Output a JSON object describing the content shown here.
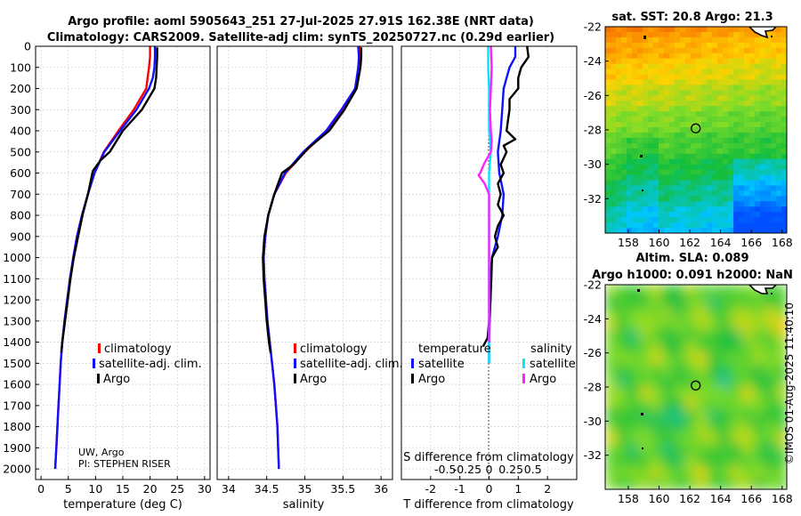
{
  "colors": {
    "climatology": "#ff0000",
    "satellite": "#1010ff",
    "argo": "#000000",
    "temp_sat_diff": "#1010ff",
    "sal_sat_diff": "#00e8ff",
    "sal_argo_diff": "#ff20ff"
  },
  "figure": {
    "title_line1": "Argo profile: aoml 5905643_251 27-Jul-2025 27.91S 162.38E (NRT data)",
    "title_line2": "Climatology: CARS2009. Satellite-adj clim: synTS_20250727.nc (0.29d earlier)",
    "credit_line1": "UW, Argo",
    "credit_line2": "PI: STEPHEN RISER",
    "imos_stamp": "©IMOS 01-Aug-2025 11:40:10"
  },
  "chart_data": [
    {
      "id": "temperature",
      "type": "line",
      "xlabel": "temperature (deg C)",
      "ylabel": "",
      "xlim": [
        -1,
        31
      ],
      "ylim": [
        2050,
        0
      ],
      "xticks": [
        "0",
        "5",
        "10",
        "15",
        "20",
        "25",
        "30"
      ],
      "xtick_values": [
        0,
        5,
        10,
        15,
        20,
        25,
        30
      ],
      "yticks": [
        "0",
        "100",
        "200",
        "300",
        "400",
        "500",
        "600",
        "700",
        "800",
        "900",
        "1000",
        "1100",
        "1200",
        "1300",
        "1400",
        "1500",
        "1600",
        "1700",
        "1800",
        "1900",
        "2000"
      ],
      "ytick_values": [
        0,
        100,
        200,
        300,
        400,
        500,
        600,
        700,
        800,
        900,
        1000,
        1100,
        1200,
        1300,
        1400,
        1500,
        1600,
        1700,
        1800,
        1900,
        2000
      ],
      "legend": [
        "climatology",
        "satellite-adj. clim.",
        "Argo"
      ],
      "series": [
        {
          "name": "climatology",
          "key": "climatology",
          "points": [
            [
              20.0,
              0
            ],
            [
              20.0,
              50
            ],
            [
              19.8,
              100
            ],
            [
              19.3,
              200
            ],
            [
              17.0,
              300
            ],
            [
              14.2,
              400
            ],
            [
              11.5,
              500
            ],
            [
              9.8,
              600
            ],
            [
              8.6,
              700
            ],
            [
              7.5,
              800
            ],
            [
              6.6,
              900
            ],
            [
              5.9,
              1000
            ],
            [
              5.3,
              1100
            ],
            [
              4.8,
              1200
            ],
            [
              4.3,
              1300
            ],
            [
              3.9,
              1400
            ],
            [
              3.6,
              1500
            ],
            [
              3.4,
              1600
            ],
            [
              3.2,
              1700
            ],
            [
              3.0,
              1800
            ],
            [
              2.8,
              1900
            ],
            [
              2.6,
              2000
            ]
          ]
        },
        {
          "name": "satellite-adj. clim.",
          "key": "satellite",
          "points": [
            [
              20.9,
              0
            ],
            [
              20.9,
              50
            ],
            [
              20.8,
              100
            ],
            [
              20.5,
              150
            ],
            [
              19.8,
              200
            ],
            [
              17.5,
              300
            ],
            [
              14.5,
              400
            ],
            [
              11.6,
              500
            ],
            [
              9.8,
              600
            ],
            [
              8.6,
              700
            ],
            [
              7.5,
              800
            ],
            [
              6.6,
              900
            ],
            [
              5.9,
              1000
            ],
            [
              5.3,
              1100
            ],
            [
              4.8,
              1200
            ],
            [
              4.3,
              1300
            ],
            [
              3.9,
              1400
            ],
            [
              3.6,
              1500
            ],
            [
              3.4,
              1600
            ],
            [
              3.2,
              1700
            ],
            [
              3.0,
              1800
            ],
            [
              2.8,
              1900
            ],
            [
              2.6,
              2000
            ]
          ]
        },
        {
          "name": "Argo",
          "key": "argo",
          "points": [
            [
              21.3,
              5
            ],
            [
              21.3,
              50
            ],
            [
              21.2,
              100
            ],
            [
              21.1,
              150
            ],
            [
              20.8,
              200
            ],
            [
              18.5,
              300
            ],
            [
              15.0,
              400
            ],
            [
              12.6,
              500
            ],
            [
              10.9,
              540
            ],
            [
              9.5,
              590
            ],
            [
              8.6,
              700
            ],
            [
              7.6,
              800
            ],
            [
              6.8,
              900
            ],
            [
              6.0,
              1000
            ],
            [
              5.4,
              1100
            ],
            [
              4.9,
              1200
            ],
            [
              4.4,
              1300
            ],
            [
              3.9,
              1400
            ],
            [
              3.7,
              1450
            ]
          ]
        }
      ]
    },
    {
      "id": "salinity",
      "type": "line",
      "xlabel": "salinity",
      "xlim": [
        33.85,
        36.15
      ],
      "ylim": [
        2050,
        0
      ],
      "xticks": [
        "34",
        "34.5",
        "35",
        "35.5",
        "36"
      ],
      "xtick_values": [
        34,
        34.5,
        35,
        35.5,
        36
      ],
      "legend": [
        "climatology",
        "satellite-adj. clim.",
        "Argo"
      ],
      "series": [
        {
          "name": "climatology",
          "key": "climatology",
          "points": [
            [
              35.72,
              0
            ],
            [
              35.73,
              50
            ],
            [
              35.72,
              100
            ],
            [
              35.68,
              200
            ],
            [
              35.5,
              300
            ],
            [
              35.3,
              400
            ],
            [
              35.0,
              500
            ],
            [
              34.75,
              600
            ],
            [
              34.6,
              700
            ],
            [
              34.52,
              800
            ],
            [
              34.48,
              900
            ],
            [
              34.46,
              1000
            ],
            [
              34.47,
              1100
            ],
            [
              34.49,
              1200
            ],
            [
              34.51,
              1300
            ],
            [
              34.54,
              1400
            ],
            [
              34.57,
              1500
            ],
            [
              34.6,
              1600
            ],
            [
              34.62,
              1700
            ],
            [
              34.64,
              1800
            ],
            [
              34.65,
              1900
            ],
            [
              34.66,
              2000
            ]
          ]
        },
        {
          "name": "satellite-adj. clim.",
          "key": "satellite",
          "points": [
            [
              35.7,
              0
            ],
            [
              35.71,
              50
            ],
            [
              35.7,
              100
            ],
            [
              35.66,
              200
            ],
            [
              35.48,
              300
            ],
            [
              35.28,
              400
            ],
            [
              34.98,
              500
            ],
            [
              34.74,
              600
            ],
            [
              34.6,
              700
            ],
            [
              34.52,
              800
            ],
            [
              34.48,
              900
            ],
            [
              34.46,
              1000
            ],
            [
              34.47,
              1100
            ],
            [
              34.49,
              1200
            ],
            [
              34.51,
              1300
            ],
            [
              34.54,
              1400
            ],
            [
              34.57,
              1500
            ],
            [
              34.6,
              1600
            ],
            [
              34.62,
              1700
            ],
            [
              34.64,
              1800
            ],
            [
              34.65,
              1900
            ],
            [
              34.66,
              2000
            ]
          ]
        },
        {
          "name": "Argo",
          "key": "argo",
          "points": [
            [
              35.74,
              5
            ],
            [
              35.74,
              50
            ],
            [
              35.73,
              100
            ],
            [
              35.68,
              200
            ],
            [
              35.52,
              300
            ],
            [
              35.32,
              400
            ],
            [
              35.05,
              480
            ],
            [
              34.85,
              560
            ],
            [
              34.7,
              600
            ],
            [
              34.65,
              650
            ],
            [
              34.6,
              700
            ],
            [
              34.52,
              800
            ],
            [
              34.47,
              900
            ],
            [
              34.45,
              1000
            ],
            [
              34.46,
              1100
            ],
            [
              34.48,
              1200
            ],
            [
              34.5,
              1300
            ],
            [
              34.53,
              1400
            ],
            [
              34.55,
              1450
            ]
          ]
        }
      ]
    },
    {
      "id": "difference",
      "type": "line",
      "xlabel": "T difference from climatology",
      "top_xlabel": "S difference from climatology",
      "xlim": [
        -3,
        3
      ],
      "top_xlim": [
        -1.0,
        1.0
      ],
      "ylim": [
        2050,
        0
      ],
      "xticks": [
        "-2",
        "-1",
        "0",
        "1",
        "2"
      ],
      "xtick_values": [
        -2,
        -1,
        0,
        1,
        2
      ],
      "top_xticks": [
        "-0.5",
        "-0.25",
        "0",
        "0.25",
        "0.5"
      ],
      "top_xtick_values": [
        -0.5,
        -0.25,
        0,
        0.25,
        0.5
      ],
      "legend_temperature_title": "temperature",
      "legend_salinity_title": "salinity",
      "legend": [
        "satellite",
        "Argo",
        "satellite",
        "Argo"
      ],
      "series": [
        {
          "name": "T satellite",
          "key": "temp_sat_diff",
          "axis": "T",
          "points": [
            [
              0.9,
              0
            ],
            [
              0.9,
              50
            ],
            [
              0.7,
              100
            ],
            [
              0.6,
              150
            ],
            [
              0.5,
              200
            ],
            [
              0.45,
              300
            ],
            [
              0.4,
              400
            ],
            [
              0.3,
              500
            ],
            [
              0.35,
              600
            ],
            [
              0.5,
              700
            ],
            [
              0.45,
              800
            ],
            [
              0.3,
              900
            ],
            [
              0.1,
              1000
            ],
            [
              0.05,
              1100
            ],
            [
              0.05,
              1200
            ],
            [
              0.02,
              1300
            ],
            [
              0.0,
              1400
            ],
            [
              0.0,
              1500
            ]
          ]
        },
        {
          "name": "T Argo",
          "key": "argo",
          "axis": "T",
          "points": [
            [
              1.3,
              0
            ],
            [
              1.35,
              50
            ],
            [
              1.1,
              100
            ],
            [
              1.0,
              150
            ],
            [
              1.0,
              200
            ],
            [
              0.7,
              250
            ],
            [
              0.7,
              300
            ],
            [
              0.65,
              350
            ],
            [
              0.6,
              400
            ],
            [
              0.9,
              440
            ],
            [
              0.5,
              470
            ],
            [
              0.6,
              500
            ],
            [
              0.4,
              560
            ],
            [
              0.5,
              600
            ],
            [
              0.3,
              650
            ],
            [
              0.4,
              700
            ],
            [
              0.3,
              750
            ],
            [
              0.5,
              800
            ],
            [
              0.3,
              850
            ],
            [
              0.2,
              900
            ],
            [
              0.3,
              950
            ],
            [
              0.1,
              1000
            ],
            [
              0.08,
              1100
            ],
            [
              0.05,
              1200
            ],
            [
              0.0,
              1300
            ],
            [
              -0.05,
              1380
            ],
            [
              -0.2,
              1420
            ]
          ]
        },
        {
          "name": "S satellite",
          "key": "sal_sat_diff",
          "axis": "S",
          "points": [
            [
              -0.01,
              0
            ],
            [
              -0.01,
              100
            ],
            [
              0.0,
              200
            ],
            [
              0.0,
              300
            ],
            [
              0.0,
              400
            ],
            [
              0.02,
              500
            ],
            [
              0.0,
              600
            ],
            [
              0.0,
              700
            ],
            [
              0.0,
              800
            ],
            [
              0.0,
              1000
            ],
            [
              0.0,
              1200
            ],
            [
              0.0,
              1400
            ],
            [
              0.0,
              1500
            ]
          ]
        },
        {
          "name": "S Argo",
          "key": "sal_argo_diff",
          "axis": "S",
          "points": [
            [
              0.02,
              0
            ],
            [
              0.03,
              100
            ],
            [
              0.02,
              200
            ],
            [
              0.01,
              300
            ],
            [
              0.02,
              400
            ],
            [
              0.03,
              450
            ],
            [
              0.02,
              500
            ],
            [
              -0.05,
              550
            ],
            [
              -0.1,
              600
            ],
            [
              -0.12,
              610
            ],
            [
              -0.05,
              650
            ],
            [
              0.0,
              700
            ],
            [
              0.0,
              800
            ],
            [
              0.0,
              900
            ],
            [
              0.0,
              1000
            ],
            [
              0.0,
              1100
            ],
            [
              0.0,
              1200
            ],
            [
              0.0,
              1300
            ],
            [
              0.0,
              1400
            ]
          ]
        }
      ]
    },
    {
      "id": "sst_map",
      "type": "heatmap",
      "title": "sat. SST: 20.8 Argo: 21.3",
      "xlim": [
        156.5,
        168.3
      ],
      "ylim": [
        -34,
        -22
      ],
      "xticks": [
        "158",
        "160",
        "162",
        "164",
        "166",
        "168"
      ],
      "xtick_values": [
        158,
        160,
        162,
        164,
        166,
        168
      ],
      "yticks": [
        "-22",
        "-24",
        "-26",
        "-28",
        "-30",
        "-32"
      ],
      "ytick_values": [
        -22,
        -24,
        -26,
        -28,
        -30,
        -32
      ],
      "argo_position": [
        162.38,
        -27.91
      ]
    },
    {
      "id": "sla_map",
      "type": "heatmap",
      "title_line1": "Altim. SLA: 0.089",
      "title_line2": "Argo h1000: 0.091 h2000: NaN",
      "xlim": [
        156.5,
        168.3
      ],
      "ylim": [
        -34,
        -22
      ],
      "xticks": [
        "158",
        "160",
        "162",
        "164",
        "166",
        "168"
      ],
      "xtick_values": [
        158,
        160,
        162,
        164,
        166,
        168
      ],
      "yticks": [
        "-22",
        "-24",
        "-26",
        "-28",
        "-30",
        "-32"
      ],
      "ytick_values": [
        -22,
        -24,
        -26,
        -28,
        -30,
        -32
      ],
      "argo_position": [
        162.38,
        -27.91
      ]
    }
  ]
}
